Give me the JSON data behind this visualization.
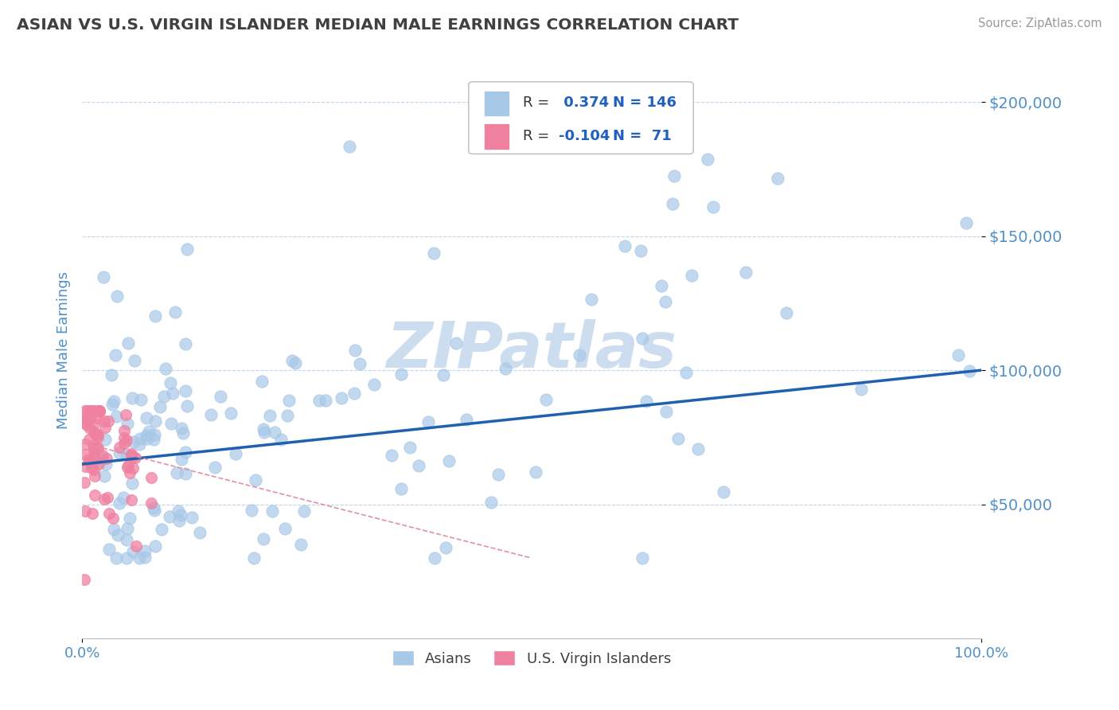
{
  "title": "ASIAN VS U.S. VIRGIN ISLANDER MEDIAN MALE EARNINGS CORRELATION CHART",
  "source": "Source: ZipAtlas.com",
  "ylabel": "Median Male Earnings",
  "r_asian": 0.374,
  "n_asian": 146,
  "r_vi": -0.104,
  "n_vi": 71,
  "asian_color": "#a8c8e8",
  "vi_color": "#f080a0",
  "trend_asian_color": "#2060b0",
  "trend_vi_color": "#e090a8",
  "title_color": "#404040",
  "axis_label_color": "#5090c8",
  "tick_color": "#5090c8",
  "legend_r_color": "#2060c0",
  "bg_color": "#ffffff",
  "grid_color": "#c0d4e8",
  "watermark": "ZIPatlas",
  "watermark_color": "#ccddf0",
  "ylim": [
    0,
    215000
  ],
  "xlim": [
    0.0,
    1.0
  ],
  "yticks": [
    50000,
    100000,
    150000,
    200000
  ],
  "ytick_labels": [
    "$50,000",
    "$100,000",
    "$150,000",
    "$200,000"
  ],
  "xtick_labels": [
    "0.0%",
    "100.0%"
  ],
  "trend_asian_x0": 0.0,
  "trend_asian_y0": 65000,
  "trend_asian_x1": 1.0,
  "trend_asian_y1": 100000,
  "trend_vi_x0": 0.0,
  "trend_vi_y0": 73000,
  "trend_vi_x1": 0.5,
  "trend_vi_y1": 30000
}
